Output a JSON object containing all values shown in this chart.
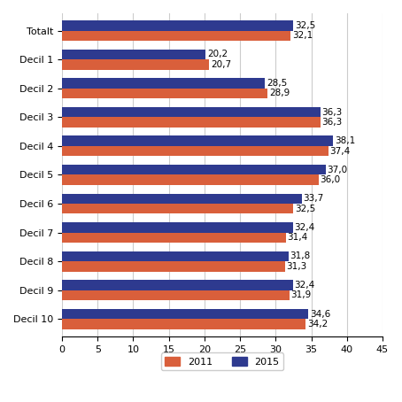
{
  "categories": [
    "Totalt",
    "Decil 1",
    "Decil 2",
    "Decil 3",
    "Decil 4",
    "Decil 5",
    "Decil 6",
    "Decil 7",
    "Decil 8",
    "Decil 9",
    "Decil 10"
  ],
  "values_2015": [
    32.5,
    20.2,
    28.5,
    36.3,
    38.1,
    37.0,
    33.7,
    32.4,
    31.8,
    32.4,
    34.6
  ],
  "values_2011": [
    32.1,
    20.7,
    28.9,
    36.3,
    37.4,
    36.0,
    32.5,
    31.4,
    31.3,
    31.9,
    34.2
  ],
  "color_2011": "#d95f3b",
  "color_2015": "#2e3a8f",
  "xlim": [
    0,
    45
  ],
  "xticks": [
    0,
    5,
    10,
    15,
    20,
    25,
    30,
    35,
    40,
    45
  ],
  "bar_height": 0.35,
  "label_fontsize": 7.5,
  "tick_fontsize": 8,
  "legend_fontsize": 8,
  "background_color": "#ffffff",
  "grid_color": "#cccccc"
}
